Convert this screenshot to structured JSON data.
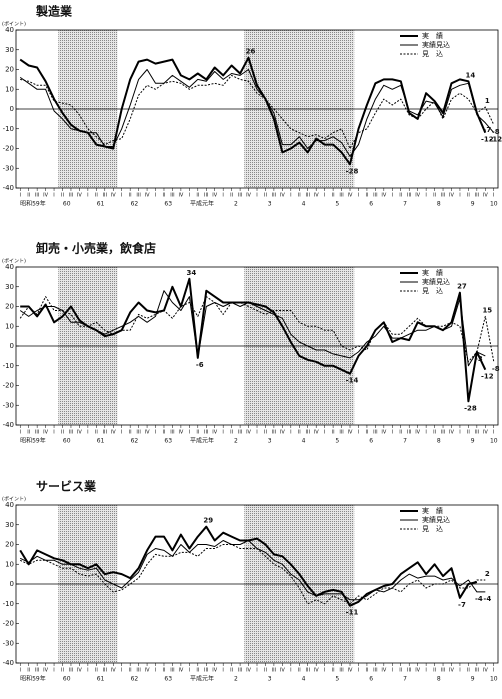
{
  "chart_data": [
    {
      "type": "line",
      "title": "製造業",
      "unit": "(ポイント)",
      "categories": [
        "I",
        "II",
        "III",
        "IV",
        "I",
        "II",
        "III",
        "IV",
        "I",
        "II",
        "III",
        "IV",
        "I",
        "II",
        "III",
        "IV",
        "I",
        "II",
        "III",
        "IV",
        "I",
        "II",
        "III",
        "IV",
        "I",
        "II",
        "III",
        "IV",
        "I",
        "II",
        "III",
        "IV",
        "I",
        "II",
        "III",
        "IV",
        "I",
        "II",
        "III",
        "IV",
        "I",
        "II",
        "III",
        "IV",
        "I",
        "II",
        "III",
        "IV",
        "I",
        "II",
        "III",
        "IV",
        "I",
        "II",
        "III",
        "IV",
        "I"
      ],
      "year_labels": [
        "昭和59年",
        "60",
        "61",
        "62",
        "63",
        "平成元年",
        "2",
        "3",
        "4",
        "5",
        "6",
        "7",
        "8",
        "9",
        "10"
      ],
      "series": [
        {
          "name": "実　績",
          "color": "#000",
          "width": 2,
          "dash": false,
          "values": [
            25,
            22,
            21,
            14,
            5,
            -2,
            -8,
            -11,
            -12,
            -18,
            -19,
            -20,
            0,
            15,
            24,
            25,
            23,
            24,
            25,
            17,
            15,
            18,
            15,
            21,
            17,
            22,
            18,
            26,
            12,
            5,
            -5,
            -22,
            -20,
            -17,
            -22,
            -15,
            -18,
            -18,
            -22,
            -28,
            -10,
            2,
            13,
            15,
            15,
            14,
            -2,
            -5,
            8,
            4,
            -2,
            13,
            15,
            14,
            -2,
            -12,
            null
          ]
        },
        {
          "name": "実績見込",
          "color": "#000",
          "width": 1,
          "dash": false,
          "values": [
            16,
            13,
            10,
            10,
            -1,
            -5,
            -10,
            -11,
            -12,
            -12,
            -19,
            -19,
            -10,
            2,
            15,
            20,
            13,
            13,
            17,
            14,
            11,
            15,
            14,
            19,
            15,
            18,
            17,
            20,
            10,
            5,
            -2,
            -18,
            -18,
            -14,
            -20,
            -16,
            -16,
            -14,
            -17,
            -24,
            -18,
            -5,
            5,
            12,
            10,
            12,
            -1,
            -3,
            4,
            3,
            -4,
            10,
            12,
            13,
            -3,
            -7,
            -12
          ]
        },
        {
          "name": "見　込",
          "color": "#000",
          "width": 1,
          "dash": true,
          "values": [
            15,
            14,
            12,
            12,
            4,
            3,
            2,
            -3,
            -10,
            -14,
            -18,
            -16,
            -15,
            -5,
            7,
            12,
            10,
            13,
            14,
            13,
            10,
            12,
            12,
            13,
            12,
            17,
            15,
            14,
            8,
            5,
            0,
            -5,
            -10,
            -12,
            -14,
            -13,
            -15,
            -12,
            -10,
            -20,
            -12,
            -10,
            -2,
            5,
            2,
            5,
            -3,
            -5,
            0,
            4,
            -5,
            5,
            8,
            5,
            -2,
            1,
            -8
          ]
        }
      ],
      "ylim": [
        -40,
        40
      ],
      "yticks": [
        -40,
        -30,
        -20,
        -10,
        0,
        10,
        20,
        30,
        40
      ],
      "shaded": [
        [
          5,
          11
        ],
        [
          27,
          39
        ]
      ],
      "labeled_points": [
        [
          0,
          27
        ],
        [
          0,
          39
        ],
        [
          0,
          53
        ],
        [
          0,
          55
        ],
        [
          1,
          56
        ],
        [
          1,
          55
        ],
        [
          2,
          55
        ],
        [
          2,
          56
        ]
      ]
    },
    {
      "type": "line",
      "title": "卸売・小売業，飲食店",
      "unit": "(ポイント)",
      "categories": [
        "I",
        "II",
        "III",
        "IV",
        "I",
        "II",
        "III",
        "IV",
        "I",
        "II",
        "III",
        "IV",
        "I",
        "II",
        "III",
        "IV",
        "I",
        "II",
        "III",
        "IV",
        "I",
        "II",
        "III",
        "IV",
        "I",
        "II",
        "III",
        "IV",
        "I",
        "II",
        "III",
        "IV",
        "I",
        "II",
        "III",
        "IV",
        "I",
        "II",
        "III",
        "IV",
        "I",
        "II",
        "III",
        "IV",
        "I",
        "II",
        "III",
        "IV",
        "I",
        "II",
        "III",
        "IV",
        "I",
        "II",
        "III",
        "IV",
        "I"
      ],
      "year_labels": [
        "昭和59年",
        "60",
        "61",
        "62",
        "63",
        "平成元年",
        "2",
        "3",
        "4",
        "5",
        "6",
        "7",
        "8",
        "9",
        "10"
      ],
      "series": [
        {
          "name": "実　績",
          "color": "#000",
          "width": 2,
          "dash": false,
          "values": [
            20,
            20,
            15,
            21,
            12,
            15,
            20,
            13,
            10,
            8,
            5,
            6,
            8,
            17,
            22,
            18,
            17,
            18,
            30,
            20,
            34,
            -6,
            28,
            25,
            22,
            22,
            22,
            22,
            21,
            20,
            17,
            10,
            2,
            -5,
            -7,
            -8,
            -10,
            -10,
            -12,
            -14,
            -5,
            0,
            8,
            12,
            2,
            4,
            3,
            12,
            10,
            10,
            8,
            12,
            27,
            -28,
            -3,
            -12,
            null
          ]
        },
        {
          "name": "実績見込",
          "color": "#000",
          "width": 1,
          "dash": false,
          "values": [
            18,
            15,
            18,
            20,
            20,
            18,
            12,
            12,
            10,
            8,
            6,
            8,
            10,
            12,
            15,
            12,
            15,
            28,
            22,
            18,
            25,
            -6,
            20,
            22,
            20,
            22,
            20,
            22,
            20,
            18,
            16,
            14,
            6,
            2,
            0,
            -2,
            -2,
            -4,
            -5,
            -6,
            -3,
            2,
            5,
            10,
            4,
            4,
            6,
            8,
            8,
            10,
            8,
            10,
            24,
            -10,
            -3,
            -5,
            null
          ]
        },
        {
          "name": "見　込",
          "color": "#000",
          "width": 1,
          "dash": true,
          "values": [
            14,
            20,
            16,
            25,
            18,
            18,
            16,
            10,
            10,
            12,
            8,
            6,
            8,
            8,
            16,
            14,
            16,
            18,
            14,
            20,
            22,
            15,
            25,
            22,
            16,
            22,
            22,
            20,
            18,
            16,
            18,
            18,
            18,
            12,
            10,
            10,
            8,
            8,
            0,
            -2,
            0,
            -2,
            8,
            12,
            6,
            6,
            10,
            14,
            10,
            10,
            10,
            12,
            10,
            -8,
            -3,
            15,
            -8
          ]
        }
      ],
      "ylim": [
        -40,
        40
      ],
      "yticks": [
        -40,
        -30,
        -20,
        -10,
        0,
        10,
        20,
        30,
        40
      ],
      "shaded": [
        [
          5,
          11
        ],
        [
          27,
          39
        ]
      ],
      "labeled_points": [
        [
          0,
          20
        ],
        [
          0,
          21
        ],
        [
          0,
          39
        ],
        [
          0,
          52
        ],
        [
          0,
          53
        ],
        [
          0,
          55
        ],
        [
          1,
          54
        ],
        [
          2,
          55
        ],
        [
          2,
          56
        ]
      ]
    },
    {
      "type": "line",
      "title": "サービス業",
      "unit": "(ポイント)",
      "categories": [
        "I",
        "II",
        "III",
        "IV",
        "I",
        "II",
        "III",
        "IV",
        "I",
        "II",
        "III",
        "IV",
        "I",
        "II",
        "III",
        "IV",
        "I",
        "II",
        "III",
        "IV",
        "I",
        "II",
        "III",
        "IV",
        "I",
        "II",
        "III",
        "IV",
        "I",
        "II",
        "III",
        "IV",
        "I",
        "II",
        "III",
        "IV",
        "I",
        "II",
        "III",
        "IV",
        "I",
        "II",
        "III",
        "IV",
        "I",
        "II",
        "III",
        "IV",
        "I",
        "II",
        "III",
        "IV",
        "I",
        "II",
        "III",
        "IV",
        "I"
      ],
      "year_labels": [
        "昭和59年",
        "60",
        "61",
        "62",
        "63",
        "平成元年",
        "2",
        "3",
        "4",
        "5",
        "6",
        "7",
        "8",
        "9",
        "10"
      ],
      "series": [
        {
          "name": "実　績",
          "color": "#000",
          "width": 2,
          "dash": false,
          "values": [
            17,
            10,
            17,
            15,
            13,
            12,
            10,
            10,
            8,
            10,
            5,
            6,
            5,
            3,
            8,
            17,
            24,
            24,
            17,
            25,
            18,
            24,
            29,
            22,
            26,
            24,
            22,
            22,
            23,
            20,
            15,
            14,
            10,
            5,
            -1,
            -6,
            -4,
            -3,
            -4,
            -11,
            -9,
            -5,
            -3,
            -1,
            0,
            5,
            8,
            11,
            5,
            10,
            4,
            8,
            -7,
            0,
            1,
            null,
            null
          ]
        },
        {
          "name": "実績見込",
          "color": "#000",
          "width": 1,
          "dash": false,
          "values": [
            13,
            11,
            14,
            12,
            12,
            10,
            10,
            8,
            7,
            8,
            2,
            0,
            -2,
            2,
            6,
            15,
            18,
            17,
            14,
            20,
            16,
            20,
            20,
            19,
            22,
            20,
            20,
            22,
            18,
            16,
            12,
            10,
            5,
            2,
            -4,
            -6,
            -5,
            -5,
            -5,
            -8,
            -8,
            -6,
            -3,
            -4,
            -2,
            2,
            5,
            3,
            4,
            4,
            2,
            3,
            -1,
            2,
            -4,
            -4,
            null
          ]
        },
        {
          "name": "見　込",
          "color": "#000",
          "width": 1,
          "dash": true,
          "values": [
            12,
            10,
            12,
            12,
            10,
            8,
            8,
            5,
            4,
            5,
            0,
            -4,
            -3,
            0,
            3,
            10,
            15,
            14,
            14,
            16,
            16,
            14,
            18,
            18,
            20,
            20,
            18,
            18,
            18,
            14,
            10,
            8,
            4,
            -2,
            -10,
            -8,
            -10,
            -6,
            -8,
            -10,
            -6,
            -8,
            -5,
            -2,
            -2,
            -4,
            0,
            2,
            -2,
            0,
            0,
            2,
            -2,
            -2,
            2,
            2,
            null
          ]
        }
      ],
      "ylim": [
        -40,
        40
      ],
      "yticks": [
        -40,
        -30,
        -20,
        -10,
        0,
        10,
        20,
        30,
        40
      ],
      "shaded": [
        [
          5,
          11
        ],
        [
          27,
          39
        ]
      ],
      "labeled_points": [
        [
          0,
          22
        ],
        [
          0,
          39
        ],
        [
          0,
          52
        ],
        [
          1,
          54
        ],
        [
          1,
          55
        ],
        [
          2,
          55
        ]
      ]
    }
  ]
}
